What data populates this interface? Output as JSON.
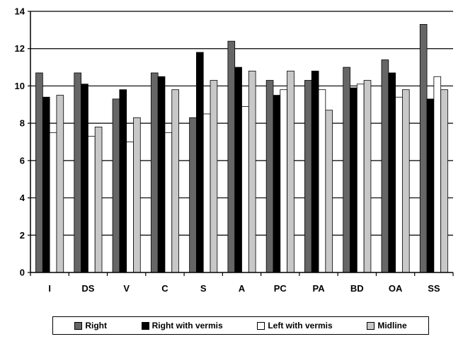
{
  "chart_data": {
    "type": "bar",
    "categories": [
      "I",
      "DS",
      "V",
      "C",
      "S",
      "A",
      "PC",
      "PA",
      "BD",
      "OA",
      "SS"
    ],
    "series": [
      {
        "name": "Right",
        "color": "#666666",
        "values": [
          10.7,
          10.7,
          9.3,
          10.7,
          8.3,
          12.4,
          10.3,
          10.3,
          11.0,
          11.4,
          13.3
        ]
      },
      {
        "name": "Right with vermis",
        "color": "#000000",
        "values": [
          9.4,
          10.1,
          9.8,
          10.5,
          11.8,
          11.0,
          9.5,
          10.8,
          9.9,
          10.7,
          9.3
        ]
      },
      {
        "name": "Left with vermis",
        "color": "#ffffff",
        "values": [
          7.5,
          7.3,
          7.0,
          7.5,
          8.5,
          8.9,
          9.8,
          9.8,
          10.1,
          9.4,
          10.5
        ]
      },
      {
        "name": "Midline",
        "color": "#c8c8c8",
        "values": [
          9.5,
          7.8,
          8.3,
          9.8,
          10.3,
          10.8,
          10.8,
          8.7,
          10.3,
          9.8,
          9.8
        ]
      }
    ],
    "y_ticks": [
      "0",
      "2",
      "4",
      "6",
      "8",
      "10",
      "12",
      "14"
    ],
    "ylim": [
      0,
      14
    ],
    "grid": true,
    "legend_position": "bottom"
  }
}
